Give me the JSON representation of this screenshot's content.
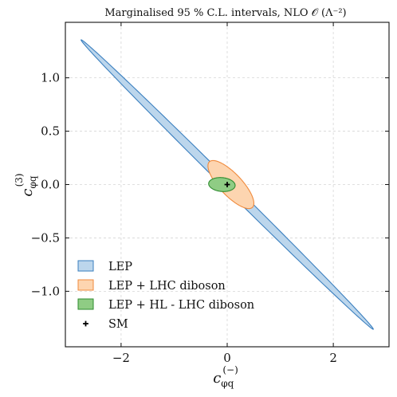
{
  "chart_data": {
    "type": "ellipse-contours",
    "title": "Marginalised 95 % C.L. intervals, NLO 𝒪 (Λ⁻²)",
    "xlabel": {
      "base": "c",
      "sub": "φq",
      "sup": "(−)"
    },
    "ylabel": {
      "base": "c",
      "sub": "φq",
      "sup": "(3)"
    },
    "xlim": [
      -3.05,
      3.05
    ],
    "ylim": [
      -1.52,
      1.52
    ],
    "x_ticks": [
      {
        "value": -2,
        "label": "−2"
      },
      {
        "value": 0,
        "label": "0"
      },
      {
        "value": 2,
        "label": "2"
      }
    ],
    "y_ticks": [
      {
        "value": 1.0,
        "label": "1.0"
      },
      {
        "value": 0.5,
        "label": "0.5"
      },
      {
        "value": 0.0,
        "label": "0.0"
      },
      {
        "value": -0.5,
        "label": "−0.5"
      },
      {
        "value": -1.0,
        "label": "−1.0"
      }
    ],
    "grid": true,
    "legend_position": "lower-left",
    "series": [
      {
        "name": "LEP",
        "fill": "#bcd6ec",
        "edge": "#3a7fbf",
        "ellipse": {
          "cx": 0.0,
          "cy": 0.0,
          "angle_deg": -26.2,
          "a": 3.07,
          "b": 0.051
        }
      },
      {
        "name": "LEP + LHC diboson",
        "fill": "#fdd5b0",
        "edge": "#f08a3c",
        "ellipse": {
          "cx": 0.07,
          "cy": 0.0,
          "angle_deg": -24.0,
          "a": 0.47,
          "b": 0.13
        }
      },
      {
        "name": "LEP + HL - LHC diboson",
        "fill": "#8fcc84",
        "edge": "#2e8b2e",
        "ellipse": {
          "cx": -0.1,
          "cy": 0.0,
          "angle_deg": -2.0,
          "a": 0.25,
          "b": 0.065
        }
      },
      {
        "name": "SM",
        "marker": "+",
        "point": {
          "x": 0.0,
          "y": 0.0
        }
      }
    ]
  }
}
